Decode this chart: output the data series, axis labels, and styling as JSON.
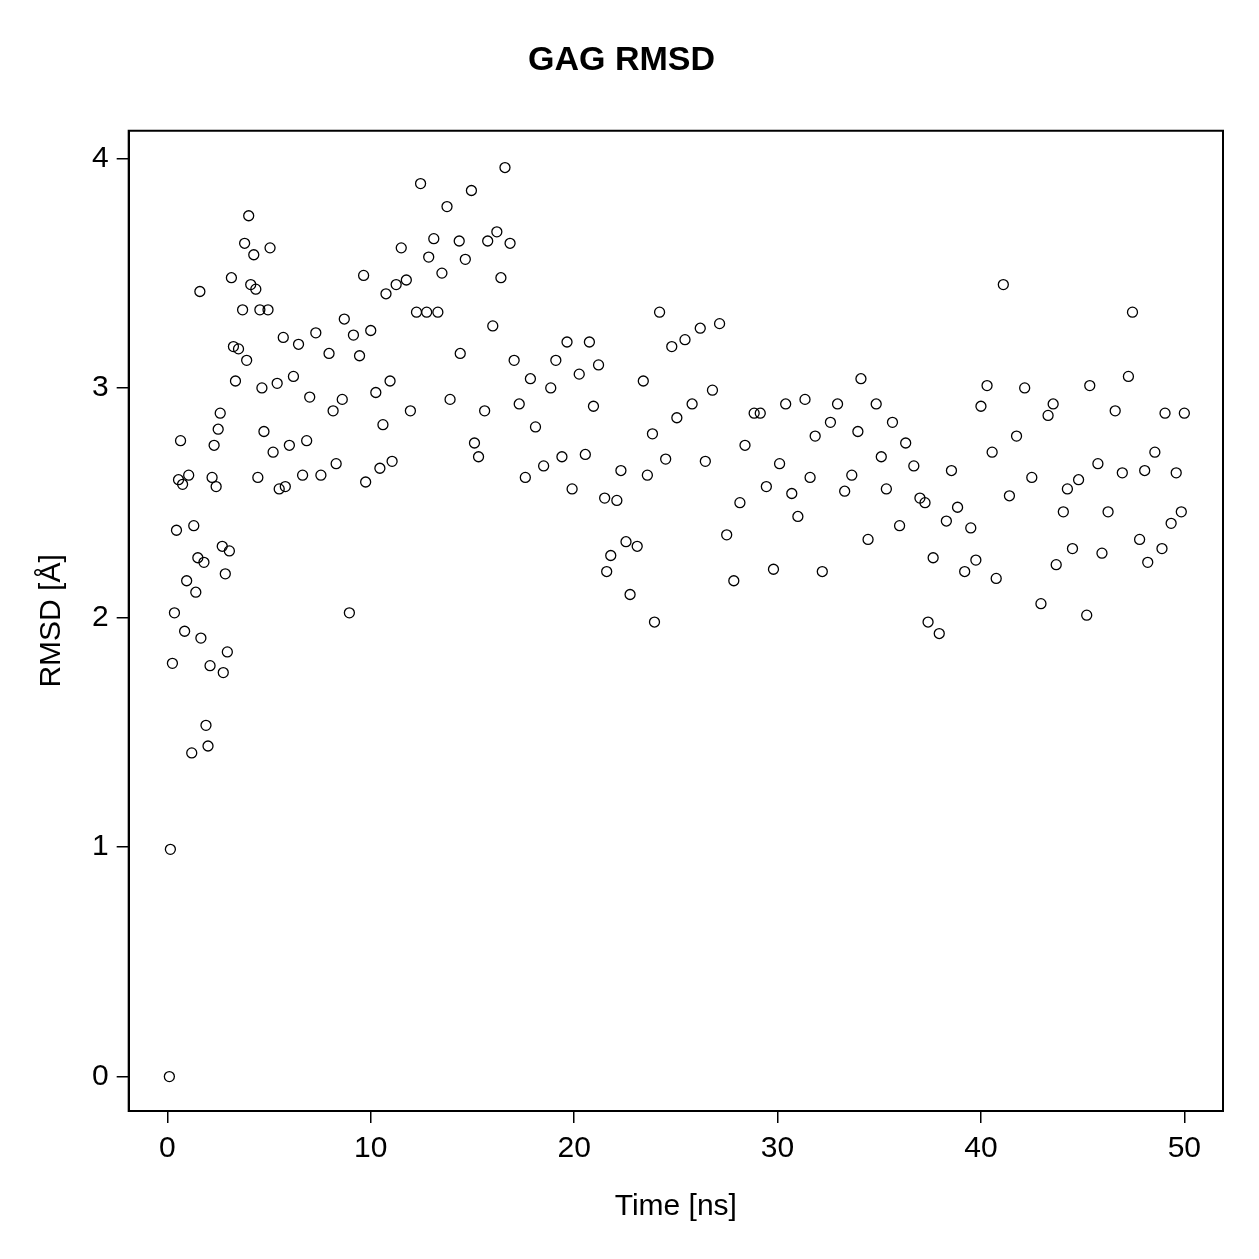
{
  "chart_data": {
    "type": "scatter",
    "title": "GAG RMSD",
    "xlabel": "Time [ns]",
    "ylabel": "RMSD [Å]",
    "color": "#000000",
    "marker": "circle",
    "xlim": [
      -1.9,
      51.9
    ],
    "ylim": [
      -0.15,
      4.12
    ],
    "xticks": [
      0,
      10,
      20,
      30,
      40,
      50
    ],
    "yticks": [
      0,
      1,
      2,
      3,
      4
    ],
    "x": [
      0.1,
      0.15,
      0.25,
      0.35,
      0.45,
      0.55,
      0.65,
      0.75,
      0.85,
      0.95,
      1.05,
      1.2,
      1.3,
      1.4,
      1.5,
      1.6,
      1.65,
      1.8,
      1.9,
      2.0,
      2.1,
      2.2,
      2.3,
      2.4,
      2.5,
      2.6,
      2.7,
      2.75,
      2.85,
      2.95,
      3.05,
      3.15,
      3.25,
      3.35,
      3.5,
      3.7,
      3.8,
      3.9,
      4.0,
      4.1,
      4.25,
      4.35,
      4.45,
      4.55,
      4.65,
      4.75,
      4.95,
      5.05,
      5.2,
      5.4,
      5.5,
      5.7,
      5.8,
      6.0,
      6.2,
      6.45,
      6.65,
      6.85,
      7.0,
      7.3,
      7.55,
      7.95,
      8.15,
      8.3,
      8.6,
      8.7,
      8.95,
      9.15,
      9.45,
      9.65,
      9.75,
      10.0,
      10.25,
      10.45,
      10.6,
      10.75,
      10.95,
      11.05,
      11.25,
      11.5,
      11.75,
      11.95,
      12.25,
      12.45,
      12.75,
      12.85,
      13.1,
      13.3,
      13.5,
      13.75,
      13.9,
      14.35,
      14.4,
      14.65,
      14.95,
      15.1,
      15.3,
      15.6,
      15.75,
      16.0,
      16.2,
      16.4,
      16.6,
      16.85,
      17.05,
      17.3,
      17.6,
      17.85,
      18.1,
      18.5,
      18.85,
      19.1,
      19.4,
      19.65,
      19.9,
      20.25,
      20.55,
      20.75,
      20.95,
      21.2,
      21.5,
      21.6,
      21.8,
      22.1,
      22.3,
      22.55,
      22.75,
      23.1,
      23.4,
      23.6,
      23.85,
      23.95,
      24.2,
      24.5,
      24.8,
      25.05,
      25.45,
      25.8,
      26.2,
      26.45,
      26.8,
      27.15,
      27.5,
      27.85,
      28.15,
      28.4,
      28.85,
      29.15,
      29.45,
      29.8,
      30.1,
      30.4,
      30.7,
      31.0,
      31.35,
      31.6,
      31.85,
      32.2,
      32.6,
      32.95,
      33.3,
      33.65,
      33.95,
      34.1,
      34.45,
      34.85,
      35.1,
      35.35,
      35.65,
      36.0,
      36.3,
      36.7,
      37.0,
      37.25,
      37.4,
      37.65,
      37.95,
      38.3,
      38.55,
      38.85,
      39.2,
      39.5,
      39.75,
      40.0,
      40.3,
      40.55,
      40.75,
      41.1,
      41.4,
      41.75,
      42.15,
      42.5,
      42.95,
      43.3,
      43.55,
      43.7,
      44.05,
      44.25,
      44.5,
      44.8,
      45.2,
      45.35,
      45.75,
      45.95,
      46.25,
      46.6,
      46.95,
      47.25,
      47.45,
      47.8,
      48.05,
      48.2,
      48.55,
      48.9,
      49.05,
      49.35,
      49.6,
      49.85,
      50.0
    ],
    "values": [
      0.0,
      0.99,
      1.8,
      2.02,
      2.38,
      2.6,
      2.77,
      2.58,
      1.94,
      2.16,
      2.62,
      1.41,
      2.4,
      2.11,
      2.26,
      3.42,
      1.91,
      2.24,
      1.53,
      1.44,
      1.79,
      2.61,
      2.75,
      2.57,
      2.82,
      2.89,
      2.31,
      1.76,
      2.19,
      1.85,
      2.29,
      3.48,
      3.18,
      3.03,
      3.17,
      3.34,
      3.63,
      3.12,
      3.75,
      3.45,
      3.58,
      3.43,
      2.61,
      3.34,
      3.0,
      2.81,
      3.34,
      3.61,
      2.72,
      3.02,
      2.56,
      3.22,
      2.57,
      2.75,
      3.05,
      3.19,
      2.62,
      2.77,
      2.96,
      3.24,
      2.62,
      3.15,
      2.9,
      2.67,
      2.95,
      3.3,
      2.02,
      3.23,
      3.14,
      3.49,
      2.59,
      3.25,
      2.98,
      2.65,
      2.84,
      3.41,
      3.03,
      2.68,
      3.45,
      3.61,
      3.47,
      2.9,
      3.33,
      3.89,
      3.33,
      3.57,
      3.65,
      3.33,
      3.5,
      3.79,
      2.95,
      3.64,
      3.15,
      3.56,
      3.86,
      2.76,
      2.7,
      2.9,
      3.64,
      3.27,
      3.68,
      3.48,
      3.96,
      3.63,
      3.12,
      2.93,
      2.61,
      3.04,
      2.83,
      2.66,
      3.0,
      3.12,
      2.7,
      3.2,
      2.56,
      3.06,
      2.71,
      3.2,
      2.92,
      3.1,
      2.52,
      2.2,
      2.27,
      2.51,
      2.64,
      2.33,
      2.1,
      2.31,
      3.03,
      2.62,
      2.8,
      1.98,
      3.33,
      2.69,
      3.18,
      2.87,
      3.21,
      2.93,
      3.26,
      2.68,
      2.99,
      3.28,
      2.36,
      2.16,
      2.5,
      2.75,
      2.89,
      2.89,
      2.57,
      2.21,
      2.67,
      2.93,
      2.54,
      2.44,
      2.95,
      2.61,
      2.79,
      2.2,
      2.85,
      2.93,
      2.55,
      2.62,
      2.81,
      3.04,
      2.34,
      2.93,
      2.7,
      2.56,
      2.85,
      2.4,
      2.76,
      2.66,
      2.52,
      2.5,
      1.98,
      2.26,
      1.93,
      2.42,
      2.64,
      2.48,
      2.2,
      2.39,
      2.25,
      2.92,
      3.01,
      2.72,
      2.17,
      3.45,
      2.53,
      2.79,
      3.0,
      2.61,
      2.06,
      2.88,
      2.93,
      2.23,
      2.46,
      2.56,
      2.3,
      2.6,
      2.01,
      3.01,
      2.67,
      2.28,
      2.46,
      2.9,
      2.63,
      3.05,
      3.33,
      2.34,
      2.64,
      2.24,
      2.72,
      2.3,
      2.89,
      2.41,
      2.63,
      2.46,
      2.89
    ]
  }
}
